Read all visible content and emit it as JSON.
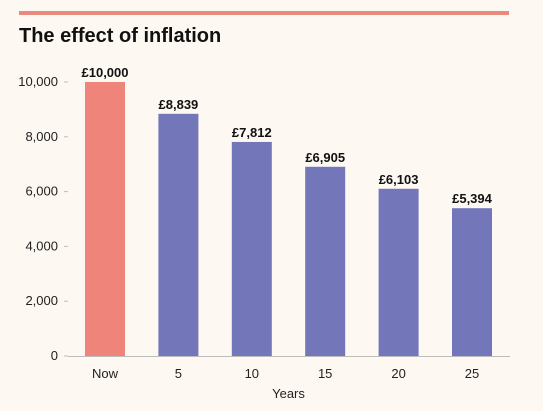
{
  "colors": {
    "accent_rule": "#e88a7e",
    "now_bar": "#ee847a",
    "future_bar": "#7377ba",
    "axis_line": "#bdbdbd",
    "background": "#fdf8f2"
  },
  "chart_data": {
    "type": "bar",
    "title": "The effect of inflation",
    "xlabel": "Years",
    "ylabel": "",
    "categories": [
      "Now",
      "5",
      "10",
      "15",
      "20",
      "25"
    ],
    "values": [
      10000,
      8839,
      7812,
      6905,
      6103,
      5394
    ],
    "data_labels": [
      "£10,000",
      "£8,839",
      "£7,812",
      "£6,905",
      "£6,103",
      "£5,394"
    ],
    "ylim": [
      0,
      10000
    ],
    "yticks": [
      0,
      2000,
      4000,
      6000,
      8000,
      10000
    ],
    "ytick_labels": [
      "0",
      "2,000",
      "4,000",
      "6,000",
      "8,000",
      "10,000"
    ],
    "grid": false,
    "legend": "none",
    "highlight_category": "Now"
  }
}
